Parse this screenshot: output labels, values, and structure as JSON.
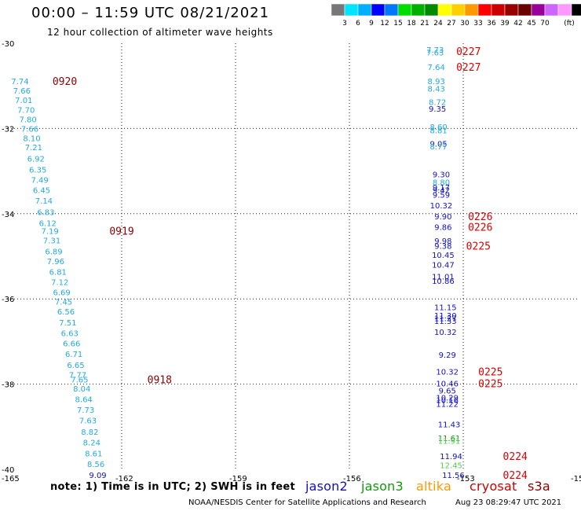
{
  "header": {
    "title": "00:00 – 11:59 UTC 08/21/2021",
    "subtitle": "12 hour collection of altimeter wave heights"
  },
  "footer": {
    "credit": "NOAA/NESDIS Center for Satellite Applications and Research",
    "timestamp": "Aug 23 08:29:47 UTC 2021",
    "note": "note:  1) Time is in UTC;  2) SWH is in feet"
  },
  "satellites": [
    {
      "name": "jason2",
      "color": "#1010cc"
    },
    {
      "name": "jason3",
      "color": "#119911"
    },
    {
      "name": "altika",
      "color": "#ff9900"
    },
    {
      "name": "cryosat",
      "color": "#cc0000"
    },
    {
      "name": "s3a",
      "color": "#880000"
    }
  ],
  "chart_data": {
    "type": "scatter",
    "title": "00:00 – 11:59 UTC 08/21/2021",
    "subtitle": "12 hour collection of altimeter wave heights",
    "xlim": [
      -165,
      -150
    ],
    "ylim": [
      -40,
      -30
    ],
    "x_tick_labels": [
      "-165",
      "-162",
      "-159",
      "-156",
      "-153",
      "-15"
    ],
    "y_tick_labels": [
      "-30",
      "-32",
      "-34",
      "-36",
      "-38",
      "-40"
    ],
    "legend": {
      "colors": [
        "#777777",
        "#00e5ff",
        "#00b0ff",
        "#0000ff",
        "#0078ff",
        "#00dd00",
        "#00b000",
        "#008800",
        "#ffff00",
        "#ffd000",
        "#ff9900",
        "#ff0000",
        "#cc0000",
        "#990000",
        "#6b0000",
        "#990099",
        "#cc66ff",
        "#ff99ff",
        "#000000"
      ],
      "labels": [
        "3",
        "6",
        "9",
        "12",
        "15",
        "18",
        "21",
        "24",
        "27",
        "30",
        "33",
        "36",
        "39",
        "42",
        "45",
        "70"
      ],
      "unit": "(ft)"
    },
    "series": [
      {
        "points": [
          {
            "lon": -164.68,
            "lat": -30.89,
            "label": "7.74",
            "color": "#22aadd"
          },
          {
            "lon": -164.63,
            "lat": -31.11,
            "label": "7.66",
            "color": "#22aadd"
          },
          {
            "lon": -164.58,
            "lat": -31.33,
            "label": "7.01",
            "color": "#22aadd"
          },
          {
            "lon": -164.52,
            "lat": -31.56,
            "label": "7.70",
            "color": "#22aadd"
          },
          {
            "lon": -164.47,
            "lat": -31.78,
            "label": "7.80",
            "color": "#22aadd"
          },
          {
            "lon": -164.42,
            "lat": -32.0,
            "label": "7.66",
            "color": "#22aadd"
          },
          {
            "lon": -164.37,
            "lat": -32.22,
            "label": "8.10",
            "color": "#22aadd"
          },
          {
            "lon": -164.32,
            "lat": -32.44,
            "label": "7.21",
            "color": "#22aadd"
          },
          {
            "lon": -164.26,
            "lat": -32.7,
            "label": "6.92",
            "color": "#22aadd"
          },
          {
            "lon": -164.21,
            "lat": -32.96,
            "label": "6.35",
            "color": "#22aadd"
          },
          {
            "lon": -164.16,
            "lat": -33.2,
            "label": "7.49",
            "color": "#22aadd"
          },
          {
            "lon": -164.11,
            "lat": -33.44,
            "label": "6.45",
            "color": "#22aadd"
          },
          {
            "lon": -164.05,
            "lat": -33.69,
            "label": "7.14",
            "color": "#22aadd"
          },
          {
            "lon": -164.0,
            "lat": -33.96,
            "label": "6.83",
            "color": "#22aadd"
          },
          {
            "lon": -163.95,
            "lat": -34.22,
            "label": "6.12",
            "color": "#22aadd"
          },
          {
            "lon": -163.89,
            "lat": -34.4,
            "label": "7.19",
            "color": "#22aadd"
          },
          {
            "lon": -163.84,
            "lat": -34.62,
            "label": "7.31",
            "color": "#22aadd"
          },
          {
            "lon": -163.79,
            "lat": -34.88,
            "label": "6.89",
            "color": "#22aadd"
          },
          {
            "lon": -163.74,
            "lat": -35.11,
            "label": "7.96",
            "color": "#22aadd"
          },
          {
            "lon": -163.68,
            "lat": -35.36,
            "label": "6.81",
            "color": "#22aadd"
          },
          {
            "lon": -163.63,
            "lat": -35.6,
            "label": "7.12",
            "color": "#22aadd"
          },
          {
            "lon": -163.58,
            "lat": -35.84,
            "label": "6.69",
            "color": "#22aadd"
          },
          {
            "lon": -163.53,
            "lat": -36.06,
            "label": "7.45",
            "color": "#22aadd"
          },
          {
            "lon": -163.47,
            "lat": -36.29,
            "label": "6.56",
            "color": "#22aadd"
          },
          {
            "lon": -163.42,
            "lat": -36.55,
            "label": "7.51",
            "color": "#22aadd"
          },
          {
            "lon": -163.37,
            "lat": -36.8,
            "label": "6.63",
            "color": "#22aadd"
          },
          {
            "lon": -163.32,
            "lat": -37.04,
            "label": "6.66",
            "color": "#22aadd"
          },
          {
            "lon": -163.26,
            "lat": -37.29,
            "label": "6.71",
            "color": "#22aadd"
          },
          {
            "lon": -163.21,
            "lat": -37.55,
            "label": "6.65",
            "color": "#22aadd"
          },
          {
            "lon": -163.16,
            "lat": -37.78,
            "label": "7.77",
            "color": "#22aadd"
          },
          {
            "lon": -163.11,
            "lat": -37.89,
            "label": "7.65",
            "color": "#22aadd"
          },
          {
            "lon": -163.05,
            "lat": -38.1,
            "label": "8.04",
            "color": "#22aadd"
          },
          {
            "lon": -163.0,
            "lat": -38.35,
            "label": "8.64",
            "color": "#22aadd"
          },
          {
            "lon": -162.95,
            "lat": -38.6,
            "label": "7.73",
            "color": "#22aadd"
          },
          {
            "lon": -162.89,
            "lat": -38.85,
            "label": "7.63",
            "color": "#22aadd"
          },
          {
            "lon": -162.84,
            "lat": -39.11,
            "label": "8.82",
            "color": "#22aadd"
          },
          {
            "lon": -162.79,
            "lat": -39.36,
            "label": "8.24",
            "color": "#22aadd"
          },
          {
            "lon": -162.74,
            "lat": -39.62,
            "label": "8.61",
            "color": "#22aadd"
          },
          {
            "lon": -162.68,
            "lat": -39.87,
            "label": "8.56",
            "color": "#22aadd"
          },
          {
            "lon": -162.63,
            "lat": -40.13,
            "label": "9.09",
            "color": "#1010cc"
          },
          {
            "lon": -153.74,
            "lat": -30.15,
            "label": "7.73",
            "color": "#22aadd"
          },
          {
            "lon": -153.74,
            "lat": -30.21,
            "label": "7.63",
            "color": "#22aadd"
          },
          {
            "lon": -153.71,
            "lat": -30.55,
            "label": "7.64",
            "color": "#22aadd"
          },
          {
            "lon": -153.71,
            "lat": -30.89,
            "label": "8.93",
            "color": "#22aadd"
          },
          {
            "lon": -153.71,
            "lat": -31.06,
            "label": "8.43",
            "color": "#22aadd"
          },
          {
            "lon": -153.68,
            "lat": -31.37,
            "label": "8.72",
            "color": "#22aadd"
          },
          {
            "lon": -153.68,
            "lat": -31.53,
            "label": "9.35",
            "color": "#1010cc"
          },
          {
            "lon": -153.65,
            "lat": -31.96,
            "label": "8.60",
            "color": "#22aadd"
          },
          {
            "lon": -153.65,
            "lat": -32.04,
            "label": "8.81",
            "color": "#22aadd"
          },
          {
            "lon": -153.65,
            "lat": -32.35,
            "label": "9.05",
            "color": "#1010cc"
          },
          {
            "lon": -153.65,
            "lat": -32.42,
            "label": "8.77",
            "color": "#22aadd"
          },
          {
            "lon": -153.58,
            "lat": -33.07,
            "label": "9.30",
            "color": "#1010cc"
          },
          {
            "lon": -153.58,
            "lat": -33.26,
            "label": "8.80",
            "color": "#22aadd"
          },
          {
            "lon": -153.58,
            "lat": -33.38,
            "label": "9.17",
            "color": "#1010cc"
          },
          {
            "lon": -153.58,
            "lat": -33.44,
            "label": "9.42",
            "color": "#1010cc"
          },
          {
            "lon": -153.58,
            "lat": -33.55,
            "label": "9.59",
            "color": "#1010cc"
          },
          {
            "lon": -153.58,
            "lat": -33.8,
            "label": "10.32",
            "color": "#1010cc"
          },
          {
            "lon": -153.53,
            "lat": -34.06,
            "label": "9.90",
            "color": "#1010cc"
          },
          {
            "lon": -153.53,
            "lat": -34.31,
            "label": "9.86",
            "color": "#1010cc"
          },
          {
            "lon": -153.53,
            "lat": -34.63,
            "label": "9.98",
            "color": "#1010cc"
          },
          {
            "lon": -153.53,
            "lat": -34.75,
            "label": "9.38",
            "color": "#1010cc"
          },
          {
            "lon": -153.53,
            "lat": -34.96,
            "label": "10.45",
            "color": "#1010cc"
          },
          {
            "lon": -153.53,
            "lat": -35.19,
            "label": "10.47",
            "color": "#1010cc"
          },
          {
            "lon": -153.53,
            "lat": -35.47,
            "label": "11.01",
            "color": "#1010cc"
          },
          {
            "lon": -153.53,
            "lat": -35.57,
            "label": "10.86",
            "color": "#1010cc"
          },
          {
            "lon": -153.47,
            "lat": -36.19,
            "label": "11.15",
            "color": "#1010cc"
          },
          {
            "lon": -153.47,
            "lat": -36.38,
            "label": "11.30",
            "color": "#1010cc"
          },
          {
            "lon": -153.47,
            "lat": -36.45,
            "label": "11.27",
            "color": "#1010cc"
          },
          {
            "lon": -153.47,
            "lat": -36.51,
            "label": "11.33",
            "color": "#1010cc"
          },
          {
            "lon": -153.47,
            "lat": -36.77,
            "label": "10.32",
            "color": "#1010cc"
          },
          {
            "lon": -153.42,
            "lat": -37.31,
            "label": "9.29",
            "color": "#1010cc"
          },
          {
            "lon": -153.42,
            "lat": -37.7,
            "label": "10.32",
            "color": "#1010cc"
          },
          {
            "lon": -153.42,
            "lat": -37.98,
            "label": "10.46",
            "color": "#1010cc"
          },
          {
            "lon": -153.42,
            "lat": -38.15,
            "label": "9.65",
            "color": "#1010cc"
          },
          {
            "lon": -153.42,
            "lat": -38.31,
            "label": "10.29",
            "color": "#1010cc"
          },
          {
            "lon": -153.42,
            "lat": -38.37,
            "label": "10.16",
            "color": "#1010cc"
          },
          {
            "lon": -153.42,
            "lat": -38.46,
            "label": "11.22",
            "color": "#1010cc"
          },
          {
            "lon": -153.37,
            "lat": -38.94,
            "label": "11.43",
            "color": "#1010cc"
          },
          {
            "lon": -153.37,
            "lat": -39.26,
            "label": "11.61",
            "color": "#119911"
          },
          {
            "lon": -153.37,
            "lat": -39.33,
            "label": "11.91",
            "color": "#55cc55"
          },
          {
            "lon": -153.32,
            "lat": -39.69,
            "label": "11.94",
            "color": "#1010cc"
          },
          {
            "lon": -153.32,
            "lat": -39.9,
            "label": "12.45",
            "color": "#55cc55"
          },
          {
            "lon": -153.26,
            "lat": -40.13,
            "label": "11.56",
            "color": "#1010cc"
          }
        ]
      }
    ],
    "time_labels": [
      {
        "lon": -163.5,
        "lat": -30.89,
        "label": "0920",
        "color": "#880000"
      },
      {
        "lon": -162.0,
        "lat": -34.4,
        "label": "0919",
        "color": "#880000"
      },
      {
        "lon": -161.0,
        "lat": -37.89,
        "label": "0918",
        "color": "#880000"
      },
      {
        "lon": -152.86,
        "lat": -30.18,
        "label": "0227",
        "color": "#dd0000"
      },
      {
        "lon": -152.86,
        "lat": -30.55,
        "label": "0227",
        "color": "#dd0000"
      },
      {
        "lon": -152.55,
        "lat": -34.06,
        "label": "0226",
        "color": "#dd0000"
      },
      {
        "lon": -152.55,
        "lat": -34.31,
        "label": "0226",
        "color": "#dd0000"
      },
      {
        "lon": -152.6,
        "lat": -34.75,
        "label": "0225",
        "color": "#dd0000"
      },
      {
        "lon": -152.28,
        "lat": -37.7,
        "label": "0225",
        "color": "#dd0000"
      },
      {
        "lon": -152.28,
        "lat": -37.98,
        "label": "0225",
        "color": "#dd0000"
      },
      {
        "lon": -151.63,
        "lat": -39.69,
        "label": "0224",
        "color": "#dd0000"
      },
      {
        "lon": -151.63,
        "lat": -40.13,
        "label": "0224",
        "color": "#dd0000"
      }
    ]
  }
}
